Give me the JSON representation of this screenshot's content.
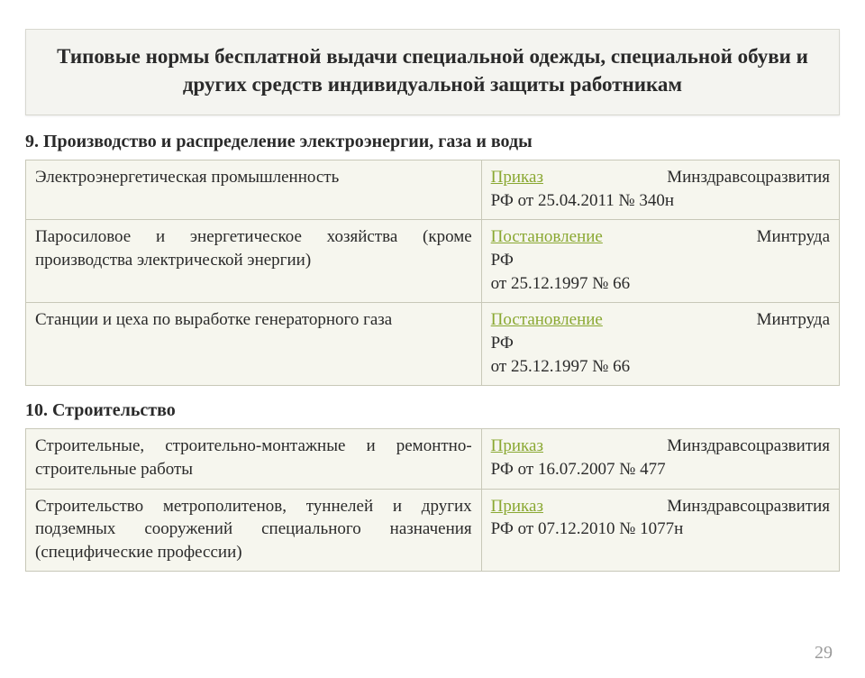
{
  "title": "Типовые нормы бесплатной выдачи специальной одежды, специальной обуви и других средств индивидуальной защиты работникам",
  "page_number": "29",
  "colors": {
    "link": "#8aa832",
    "title_bg": "#f4f4f0",
    "table_bg": "#f6f6ee",
    "border": "#c8c8b8",
    "pagenum": "#9a9a9a"
  },
  "sections": [
    {
      "heading": "9. Производство и распределение электроэнергии, газа и воды",
      "rows": [
        {
          "left": "Электроэнергетическая промышленность",
          "link_text": "Приказ",
          "right_rest_inline": "Минздравсоцразвития",
          "right_tail": "РФ от 25.04.2011 № 340н"
        },
        {
          "left": "Паросиловое и энергетическое хозяйства (кроме производства электрической энергии)",
          "link_text": "Постановление",
          "right_rest_inline": "Минтруда",
          "right_tail": "РФ\nот 25.12.1997 № 66"
        },
        {
          "left": "Станции и цеха по выработке генераторного газа",
          "link_text": "Постановление",
          "right_rest_inline": "Минтруда",
          "right_tail": "РФ\nот 25.12.1997 № 66"
        }
      ]
    },
    {
      "heading": "10. Строительство",
      "rows": [
        {
          "left": "Строительные, строительно-монтажные и ремонтно-строительные работы",
          "link_text": "Приказ",
          "right_rest_inline": "Минздравсоцразвития",
          "right_tail": "РФ от 16.07.2007 № 477"
        },
        {
          "left": "Строительство метрополитенов, туннелей и других подземных сооружений специального назначения (специфические профессии)",
          "link_text": "Приказ",
          "right_rest_inline": "Минздравсоцразвития",
          "right_tail": "РФ от 07.12.2010 № 1077н"
        }
      ]
    }
  ]
}
